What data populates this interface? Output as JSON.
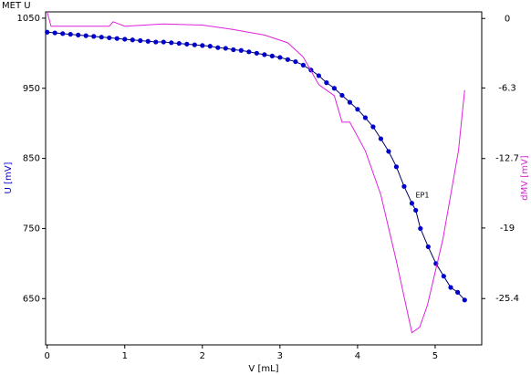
{
  "chart_data": {
    "type": "line",
    "title": "MET U",
    "xlabel": "V [mL]",
    "ylabel": "U [mV]",
    "y2label": "dMV [mV]",
    "xlim": [
      -0.02,
      5.6
    ],
    "xticks": [
      0,
      1,
      2,
      3,
      4,
      5
    ],
    "ylim": [
      584,
      1059
    ],
    "yticks": [
      650,
      750,
      850,
      950,
      1050
    ],
    "y2lim": [
      -29.6,
      0.6
    ],
    "y2ticks": [
      -25.4,
      -19,
      -12.7,
      -6.3,
      0
    ],
    "annotations": [
      {
        "text": "EP1",
        "x": 4.7,
        "y": 786
      }
    ],
    "series": [
      {
        "name": "U",
        "color": "#0000cc",
        "markers": true,
        "x": [
          0,
          0.1,
          0.2,
          0.3,
          0.4,
          0.5,
          0.6,
          0.7,
          0.8,
          0.9,
          1,
          1.1,
          1.2,
          1.3,
          1.4,
          1.5,
          1.6,
          1.7,
          1.8,
          1.9,
          2,
          2.1,
          2.2,
          2.3,
          2.4,
          2.5,
          2.6,
          2.7,
          2.8,
          2.9,
          3,
          3.1,
          3.2,
          3.3,
          3.4,
          3.5,
          3.6,
          3.7,
          3.8,
          3.9,
          4,
          4.1,
          4.2,
          4.3,
          4.4,
          4.5,
          4.6,
          4.7,
          4.75,
          4.81,
          4.91,
          5.01,
          5.11,
          5.2,
          5.29,
          5.38
        ],
        "values": [
          1030,
          1029,
          1028,
          1027,
          1026,
          1025,
          1024,
          1023,
          1022,
          1021,
          1020,
          1019,
          1018,
          1017,
          1016,
          1016,
          1015,
          1014,
          1013,
          1012,
          1011,
          1010,
          1008,
          1007,
          1005,
          1004,
          1002,
          1000,
          998,
          996,
          994,
          991,
          988,
          983,
          976,
          968,
          958,
          950,
          940,
          930,
          920,
          908,
          895,
          878,
          860,
          838,
          810,
          786,
          776,
          750,
          724,
          700,
          682,
          666,
          659,
          648
        ]
      },
      {
        "name": "dMV",
        "color": "#dd22dd",
        "markers": false,
        "axis": "y2",
        "x": [
          0,
          0.05,
          0.5,
          0.8,
          0.85,
          1,
          1.5,
          2,
          2.2,
          2.4,
          2.8,
          3.1,
          3.3,
          3.5,
          3.7,
          3.8,
          3.9,
          4.1,
          4.3,
          4.5,
          4.7,
          4.8,
          4.9,
          5.1,
          5.3,
          5.38
        ],
        "values": [
          0.6,
          -0.7,
          -0.7,
          -0.7,
          -0.3,
          -0.7,
          -0.5,
          -0.6,
          -0.8,
          -1.0,
          -1.5,
          -2.2,
          -3.5,
          -6.0,
          -7.0,
          -9.4,
          -9.4,
          -12,
          -16,
          -22,
          -28.5,
          -28,
          -26,
          -20,
          -12,
          -6.5
        ]
      }
    ]
  }
}
